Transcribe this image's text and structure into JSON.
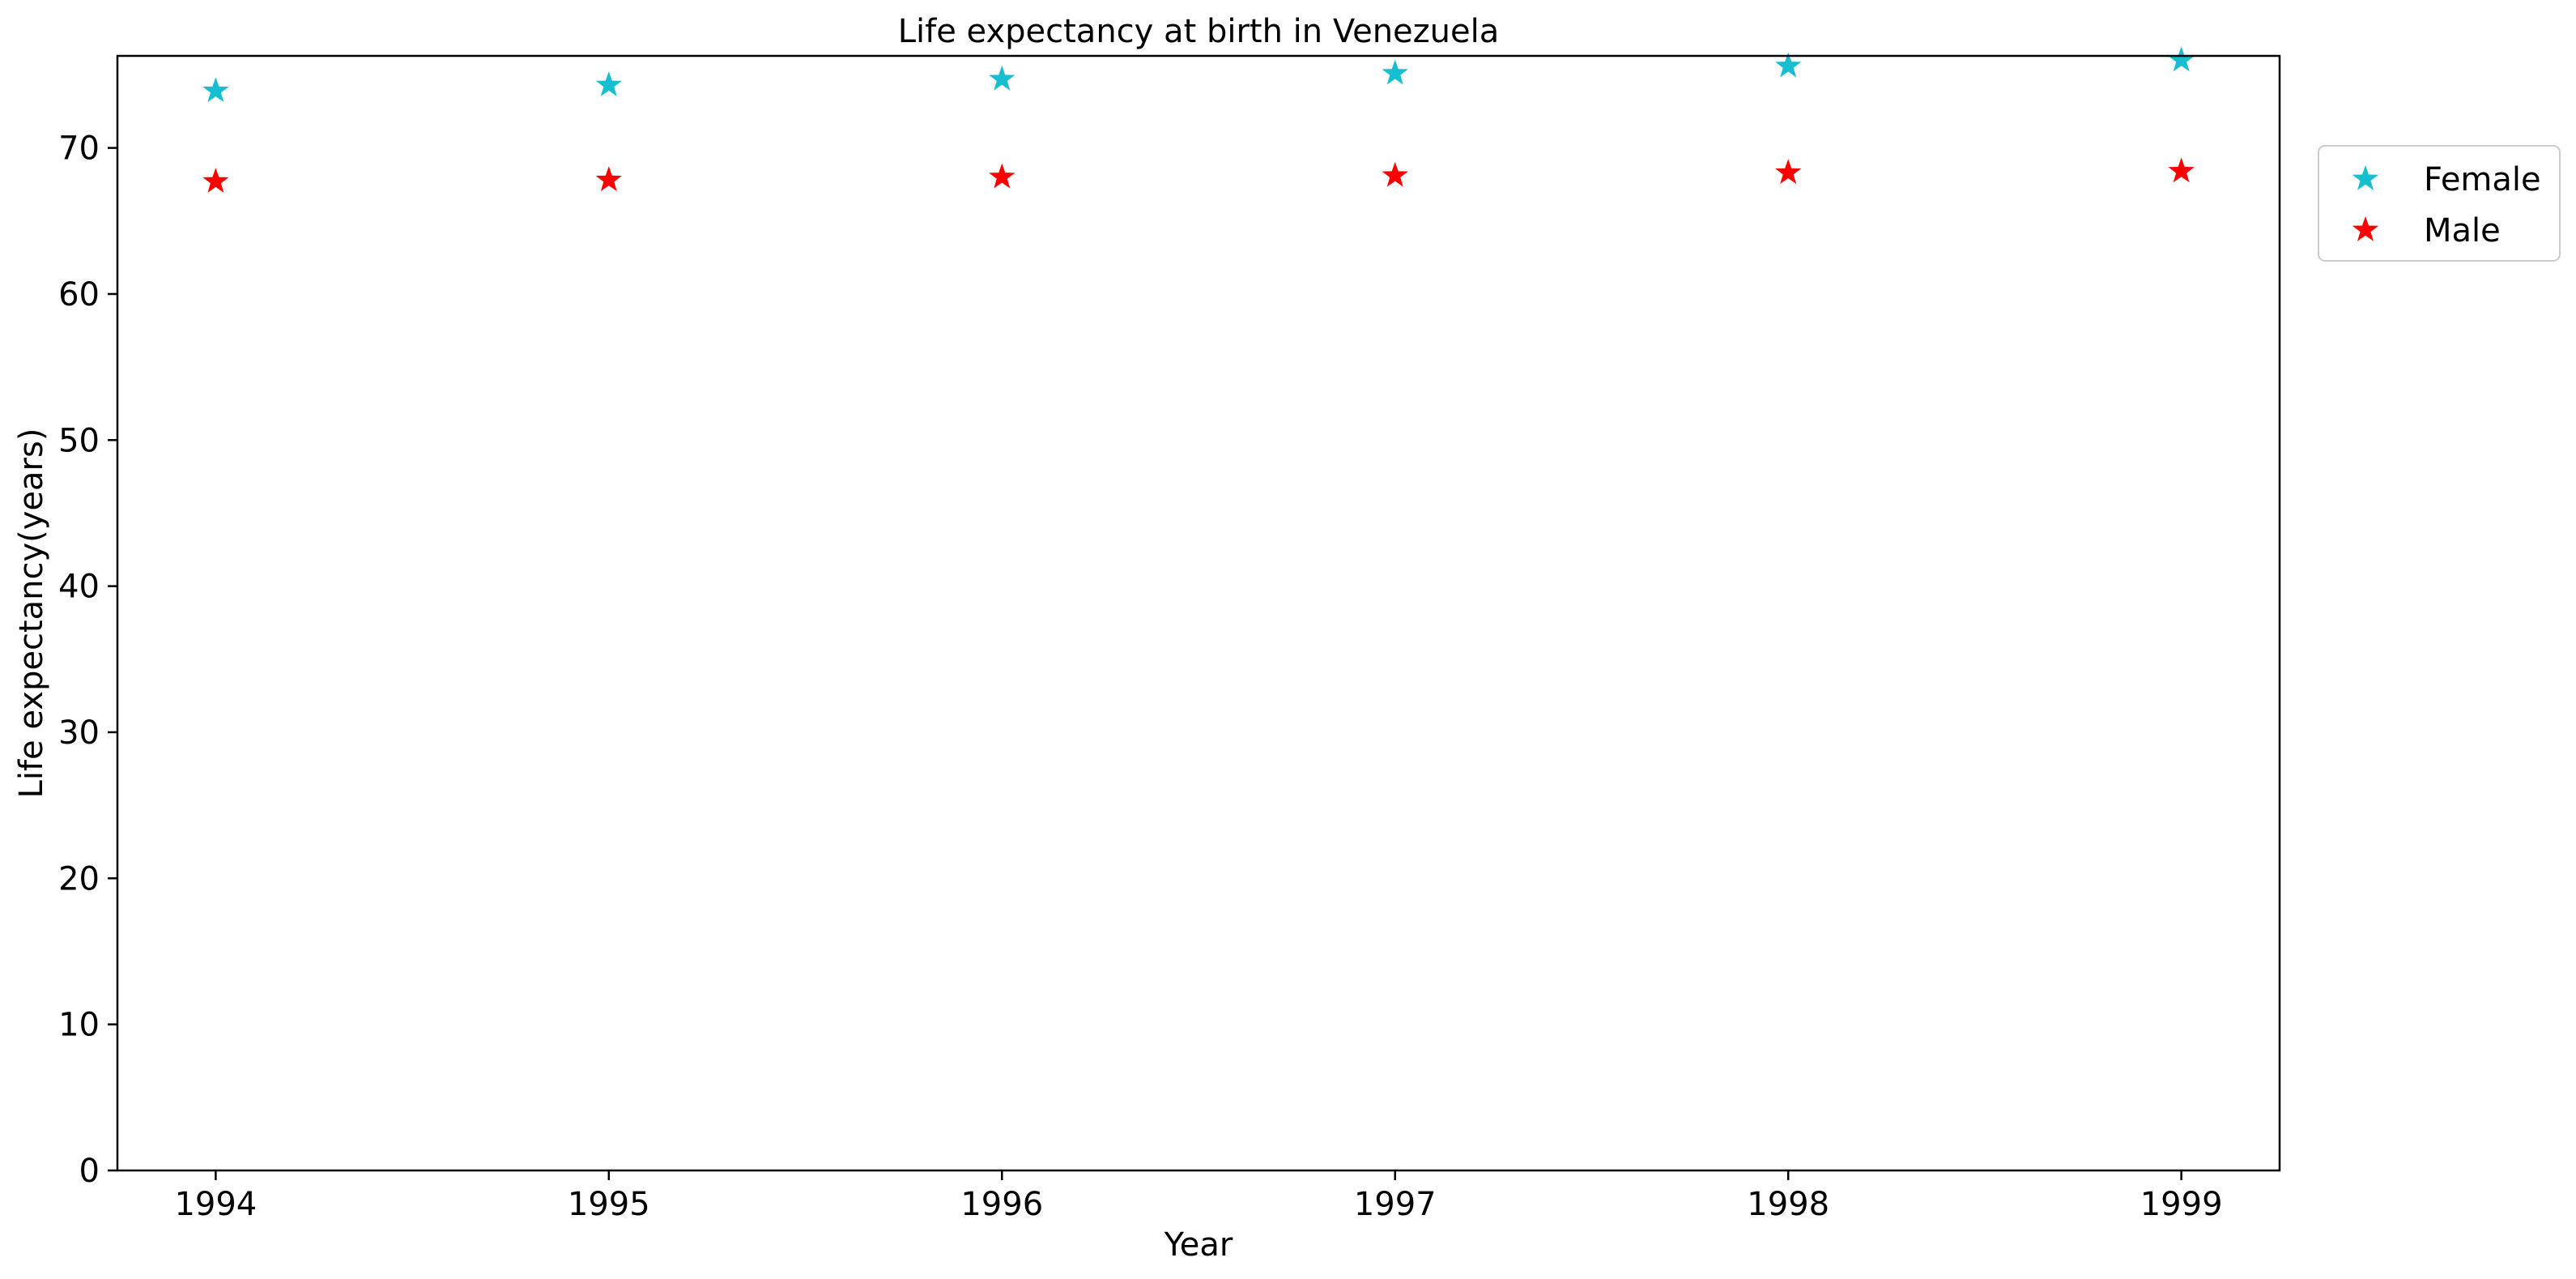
{
  "chart_data": {
    "type": "scatter",
    "title": "Life expectancy at birth in Venezuela",
    "xlabel": "Year",
    "ylabel": "Life expectancy(years)",
    "x": [
      1994,
      1995,
      1996,
      1997,
      1998,
      1999
    ],
    "xlim": [
      1993.75,
      1999.25
    ],
    "ylim": [
      0,
      76.3
    ],
    "yticks": [
      0,
      10,
      20,
      30,
      40,
      50,
      60,
      70
    ],
    "marker": "star",
    "grid": false,
    "legend_position": "outside-top-right",
    "series": [
      {
        "name": "Female",
        "color": "#17becf",
        "values": [
          73.9,
          74.3,
          74.7,
          75.1,
          75.6,
          76.0
        ]
      },
      {
        "name": "Male",
        "color": "#ff0000",
        "values": [
          67.7,
          67.8,
          68.0,
          68.1,
          68.3,
          68.4
        ]
      }
    ]
  }
}
